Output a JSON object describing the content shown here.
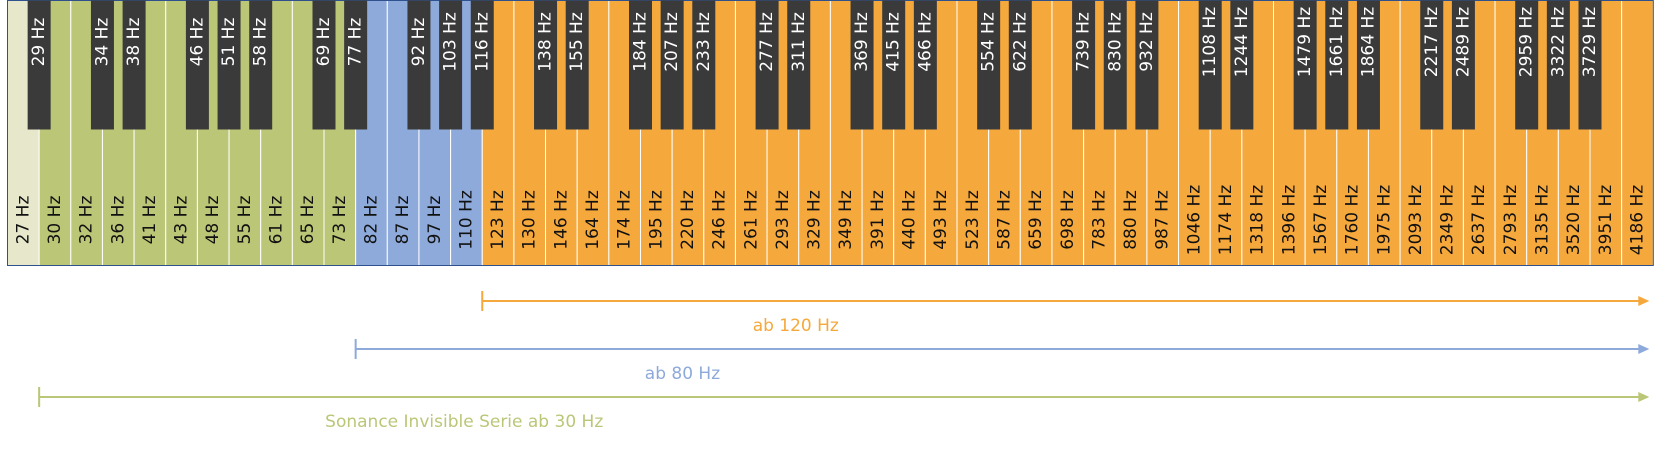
{
  "key_groups": [
    {
      "color": "#e7e7cb",
      "keys": [
        "27 Hz"
      ]
    },
    {
      "color": "#bcc677",
      "keys": [
        "30 Hz",
        "32 Hz",
        "36 Hz",
        "41 Hz",
        "43 Hz",
        "48 Hz",
        "55 Hz",
        "61 Hz",
        "65 Hz",
        "73 Hz"
      ],
      "range_label": "Sonance Invisible Serie ab 30 Hz"
    },
    {
      "color": "#8eaadb",
      "keys": [
        "82 Hz",
        "87 Hz",
        "97 Hz",
        "110 Hz"
      ],
      "range_label": "ab 80 Hz"
    },
    {
      "color": "#f5a83c",
      "keys": [
        "123 Hz",
        "130 Hz",
        "146 Hz",
        "164 Hz",
        "174 Hz",
        "195 Hz",
        "220 Hz",
        "246 Hz",
        "261 Hz",
        "293 Hz",
        "329 Hz",
        "349 Hz",
        "391 Hz",
        "440 Hz",
        "493 Hz",
        "523 Hz",
        "587 Hz",
        "659 Hz",
        "698 Hz",
        "783 Hz",
        "880 Hz",
        "987 Hz",
        "1046 Hz",
        "1174 Hz",
        "1318 Hz",
        "1396 Hz",
        "1567 Hz",
        "1760 Hz",
        "1975 Hz",
        "2093 Hz",
        "2349 Hz",
        "2637 Hz",
        "2793 Hz",
        "3135 Hz",
        "3520 Hz",
        "3951 Hz",
        "4186 Hz"
      ],
      "range_label": "ab 120 Hz"
    }
  ],
  "black_keys": {
    "color": "#3a3a3a",
    "keys": [
      "29 Hz",
      "34 Hz",
      "38 Hz",
      "46 Hz",
      "51 Hz",
      "58 Hz",
      "69 Hz",
      "77 Hz",
      "92 Hz",
      "103 Hz",
      "116 Hz",
      "138 Hz",
      "155 Hz",
      "184 Hz",
      "207 Hz",
      "233 Hz",
      "277 Hz",
      "311 Hz",
      "369 Hz",
      "415 Hz",
      "466 Hz",
      "554 Hz",
      "622 Hz",
      "739 Hz",
      "830 Hz",
      "932 Hz",
      "1108 Hz",
      "1244 Hz",
      "1479 Hz",
      "1661 Hz",
      "1864 Hz",
      "2217 Hz",
      "2489 Hz",
      "2959 Hz",
      "3322 Hz",
      "3729 Hz"
    ]
  }
}
